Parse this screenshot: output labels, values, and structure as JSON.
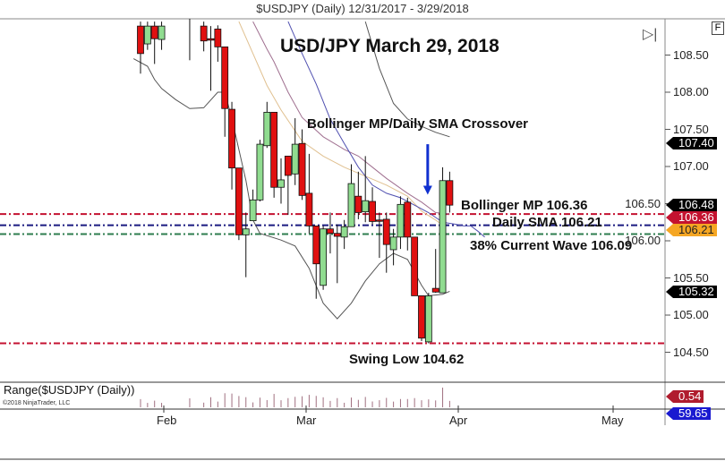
{
  "header": {
    "title": "$USDJPY (Daily)  12/31/2017 - 3/29/2018"
  },
  "annotations": {
    "main_title": "USD/JPY March 29, 2018",
    "crossover": "Bollinger MP/Daily SMA Crossover",
    "bollinger_mp": "Bollinger MP 106.36",
    "daily_sma": "Daily SMA 106.21",
    "wave38": "38% Current Wave 106.09",
    "swing_low": "Swing Low 104.62"
  },
  "controls": {
    "f_button": "F",
    "scroll_end_icon": "play-to-end-icon"
  },
  "range_panel": {
    "label": "Range($USDJPY (Daily))",
    "copyright": "©2018 NinjaTrader, LLC"
  },
  "flags": [
    {
      "text": "107.40",
      "color": "#000000",
      "price": 107.4
    },
    {
      "text": "106.48",
      "color": "#000000",
      "price": 106.48
    },
    {
      "text": "106.36",
      "color": "#c41230",
      "price": 106.36
    },
    {
      "text": "106.21",
      "color": "#f5a623",
      "price": 106.21
    },
    {
      "text": "105.32",
      "color": "#000000",
      "price": 105.32
    }
  ],
  "range_flags": [
    {
      "text": "0.54",
      "color": "#b01c2e"
    },
    {
      "text": "59.65",
      "color": "#1a1ad0"
    }
  ],
  "chart_data": {
    "type": "candlestick",
    "title": "USD/JPY March 29, 2018",
    "ylim": [
      104.4,
      108.95
    ],
    "yticks": [
      "108.50",
      "108.00",
      "107.50",
      "107.00",
      "106.50",
      "106.00",
      "105.50",
      "105.00",
      "104.50"
    ],
    "xticks": [
      "Feb",
      "Mar",
      "Apr",
      "May"
    ],
    "grid": false,
    "colors": {
      "up": "#90dc90",
      "down": "#e01010",
      "upper_band": "#555555",
      "lower_band": "#555555",
      "bollinger_mp": "#a07090",
      "sma": "#e0c090",
      "blue_line": "#5050b0"
    },
    "candles": [
      {
        "d": "2018-01-26",
        "o": 108.89,
        "h": 108.95,
        "l": 108.25,
        "c": 108.52
      },
      {
        "d": "2018-01-29",
        "o": 108.65,
        "h": 108.95,
        "l": 108.57,
        "c": 108.89
      },
      {
        "d": "2018-01-30",
        "o": 108.89,
        "h": 108.95,
        "l": 108.38,
        "c": 108.72
      },
      {
        "d": "2018-01-31",
        "o": 108.71,
        "h": 108.95,
        "l": 108.57,
        "c": 108.89
      },
      {
        "d": "2018-02-06",
        "o": 109.1,
        "h": 109.2,
        "l": 108.43,
        "c": 109.0
      },
      {
        "d": "2018-02-08",
        "o": 108.89,
        "h": 108.95,
        "l": 108.55,
        "c": 108.69
      },
      {
        "d": "2018-02-09",
        "o": 108.72,
        "h": 108.89,
        "l": 108.02,
        "c": 108.7
      },
      {
        "d": "2018-02-12",
        "o": 108.85,
        "h": 108.9,
        "l": 108.41,
        "c": 108.61
      },
      {
        "d": "2018-02-13",
        "o": 108.61,
        "h": 108.61,
        "l": 107.4,
        "c": 107.78
      },
      {
        "d": "2018-02-14",
        "o": 107.77,
        "h": 107.87,
        "l": 106.69,
        "c": 106.98
      },
      {
        "d": "2018-02-15",
        "o": 106.98,
        "h": 106.98,
        "l": 106.01,
        "c": 106.08
      },
      {
        "d": "2018-02-16",
        "o": 106.08,
        "h": 106.38,
        "l": 105.51,
        "c": 106.16
      },
      {
        "d": "2018-02-19",
        "o": 106.27,
        "h": 106.69,
        "l": 106.27,
        "c": 106.55
      },
      {
        "d": "2018-02-20",
        "o": 106.55,
        "h": 107.36,
        "l": 106.53,
        "c": 107.3
      },
      {
        "d": "2018-02-21",
        "o": 107.28,
        "h": 107.87,
        "l": 107.25,
        "c": 107.73
      },
      {
        "d": "2018-02-22",
        "o": 107.73,
        "h": 107.73,
        "l": 106.58,
        "c": 106.72
      },
      {
        "d": "2018-02-23",
        "o": 106.72,
        "h": 107.11,
        "l": 106.5,
        "c": 106.82
      },
      {
        "d": "2018-02-26",
        "o": 107.14,
        "h": 107.14,
        "l": 106.35,
        "c": 106.88
      },
      {
        "d": "2018-02-27",
        "o": 106.9,
        "h": 107.65,
        "l": 106.75,
        "c": 107.3
      },
      {
        "d": "2018-02-28",
        "o": 107.31,
        "h": 107.5,
        "l": 106.55,
        "c": 106.61
      },
      {
        "d": "2018-03-01",
        "o": 106.64,
        "h": 107.17,
        "l": 106.1,
        "c": 106.2
      },
      {
        "d": "2018-03-02",
        "o": 106.2,
        "h": 106.2,
        "l": 105.22,
        "c": 105.69
      },
      {
        "d": "2018-03-05",
        "o": 105.4,
        "h": 106.2,
        "l": 105.34,
        "c": 106.16
      },
      {
        "d": "2018-03-06",
        "o": 106.16,
        "h": 106.38,
        "l": 105.83,
        "c": 106.1
      },
      {
        "d": "2018-03-07",
        "o": 106.1,
        "h": 106.22,
        "l": 105.43,
        "c": 106.06
      },
      {
        "d": "2018-03-08",
        "o": 106.05,
        "h": 106.28,
        "l": 105.89,
        "c": 106.19
      },
      {
        "d": "2018-03-09",
        "o": 106.19,
        "h": 107.03,
        "l": 106.19,
        "c": 106.77
      },
      {
        "d": "2018-03-12",
        "o": 106.6,
        "h": 106.93,
        "l": 106.29,
        "c": 106.38
      },
      {
        "d": "2018-03-13",
        "o": 106.39,
        "h": 107.14,
        "l": 106.25,
        "c": 106.54
      },
      {
        "d": "2018-03-14",
        "o": 106.53,
        "h": 106.72,
        "l": 106.22,
        "c": 106.26
      },
      {
        "d": "2018-03-15",
        "o": 106.28,
        "h": 106.38,
        "l": 105.77,
        "c": 106.27
      },
      {
        "d": "2018-03-16",
        "o": 106.29,
        "h": 106.38,
        "l": 105.57,
        "c": 105.95
      },
      {
        "d": "2018-03-19",
        "o": 105.88,
        "h": 106.16,
        "l": 105.67,
        "c": 106.05
      },
      {
        "d": "2018-03-20",
        "o": 106.05,
        "h": 106.6,
        "l": 105.89,
        "c": 106.49
      },
      {
        "d": "2018-03-21",
        "o": 106.52,
        "h": 106.58,
        "l": 105.87,
        "c": 106.05
      },
      {
        "d": "2018-03-22",
        "o": 106.05,
        "h": 106.05,
        "l": 105.26,
        "c": 105.26
      },
      {
        "d": "2018-03-23",
        "o": 105.26,
        "h": 105.26,
        "l": 104.65,
        "c": 104.69
      },
      {
        "d": "2018-03-26",
        "o": 104.64,
        "h": 105.3,
        "l": 104.62,
        "c": 105.26
      },
      {
        "d": "2018-03-27",
        "o": 105.36,
        "h": 105.89,
        "l": 105.3,
        "c": 105.31
      },
      {
        "d": "2018-03-28",
        "o": 105.3,
        "h": 106.99,
        "l": 105.3,
        "c": 106.81
      },
      {
        "d": "2018-03-29",
        "o": 106.81,
        "h": 106.93,
        "l": 106.38,
        "c": 106.48
      }
    ],
    "lines": {
      "lower_band": [
        [
          "2018-01-25",
          108.45
        ],
        [
          "2018-01-29",
          108.35
        ],
        [
          "2018-01-30",
          108.17
        ],
        [
          "2018-01-31",
          108.05
        ],
        [
          "2018-02-02",
          107.9
        ],
        [
          "2018-02-06",
          107.78
        ],
        [
          "2018-02-08",
          107.79
        ],
        [
          "2018-02-12",
          108.0
        ],
        [
          "2018-02-13",
          108.0
        ],
        [
          "2018-02-14",
          107.64
        ],
        [
          "2018-02-16",
          106.81
        ],
        [
          "2018-02-19",
          106.28
        ],
        [
          "2018-02-20",
          106.1
        ],
        [
          "2018-02-23",
          106.01
        ],
        [
          "2018-02-27",
          105.93
        ],
        [
          "2018-03-01",
          105.63
        ],
        [
          "2018-03-05",
          105.16
        ],
        [
          "2018-03-07",
          104.95
        ],
        [
          "2018-03-09",
          105.16
        ],
        [
          "2018-03-13",
          105.46
        ],
        [
          "2018-03-15",
          105.69
        ],
        [
          "2018-03-19",
          105.83
        ],
        [
          "2018-03-21",
          105.75
        ],
        [
          "2018-03-23",
          105.4
        ],
        [
          "2018-03-26",
          105.26
        ],
        [
          "2018-03-28",
          105.28
        ],
        [
          "2018-03-29",
          105.32
        ]
      ],
      "upper_band": [
        [
          "2018-03-13",
          108.95
        ],
        [
          "2018-03-15",
          108.32
        ],
        [
          "2018-03-19",
          107.85
        ],
        [
          "2018-03-21",
          107.64
        ],
        [
          "2018-03-23",
          107.54
        ],
        [
          "2018-03-27",
          107.46
        ],
        [
          "2018-03-29",
          107.4
        ]
      ],
      "bollinger_mp": [
        [
          "2018-02-19",
          108.95
        ],
        [
          "2018-02-21",
          108.58
        ],
        [
          "2018-02-22",
          108.41
        ],
        [
          "2018-02-26",
          108.0
        ],
        [
          "2018-02-28",
          107.66
        ],
        [
          "2018-03-05",
          107.4
        ],
        [
          "2018-03-08",
          107.23
        ],
        [
          "2018-03-12",
          107.14
        ],
        [
          "2018-03-14",
          106.99
        ],
        [
          "2018-03-16",
          106.84
        ],
        [
          "2018-03-21",
          106.64
        ],
        [
          "2018-03-23",
          106.52
        ],
        [
          "2018-03-27",
          106.38
        ],
        [
          "2018-03-29",
          106.36
        ]
      ],
      "sma": [
        [
          "2018-02-15",
          108.95
        ],
        [
          "2018-02-19",
          108.52
        ],
        [
          "2018-02-21",
          108.09
        ],
        [
          "2018-02-23",
          107.76
        ],
        [
          "2018-02-28",
          107.34
        ],
        [
          "2018-03-05",
          107.14
        ],
        [
          "2018-03-08",
          106.99
        ],
        [
          "2018-03-13",
          106.87
        ],
        [
          "2018-03-16",
          106.75
        ],
        [
          "2018-03-21",
          106.6
        ],
        [
          "2018-03-23",
          106.4
        ],
        [
          "2018-03-27",
          106.28
        ],
        [
          "2018-03-28",
          106.21
        ]
      ],
      "blue_line": [
        [
          "2018-02-26",
          108.95
        ],
        [
          "2018-02-28",
          108.52
        ],
        [
          "2018-03-02",
          108.11
        ],
        [
          "2018-03-06",
          107.64
        ],
        [
          "2018-03-08",
          107.31
        ],
        [
          "2018-03-12",
          106.99
        ],
        [
          "2018-03-14",
          106.75
        ],
        [
          "2018-03-16",
          106.64
        ],
        [
          "2018-03-20",
          106.58
        ],
        [
          "2018-03-22",
          106.48
        ],
        [
          "2018-03-26",
          106.38
        ],
        [
          "2018-03-28",
          106.25
        ],
        [
          "2018-03-30",
          106.22
        ],
        [
          "2018-04-02",
          106.2
        ],
        [
          "2018-04-03",
          106.2
        ],
        [
          "2018-04-04",
          106.13
        ],
        [
          "2018-04-05",
          106.05
        ]
      ]
    },
    "levels": [
      {
        "name": "Bollinger MP",
        "value": 106.36,
        "color": "#c41230"
      },
      {
        "name": "Daily SMA",
        "value": 106.21,
        "color": "#1a1a80"
      },
      {
        "name": "38% Current Wave",
        "value": 106.09,
        "color": "#2e7d4f"
      },
      {
        "name": "Swing Low",
        "value": 104.62,
        "color": "#c41230"
      }
    ],
    "arrow": {
      "date": "2018-03-26",
      "from": 107.3,
      "to": 106.62,
      "color": "#1030d0"
    }
  }
}
